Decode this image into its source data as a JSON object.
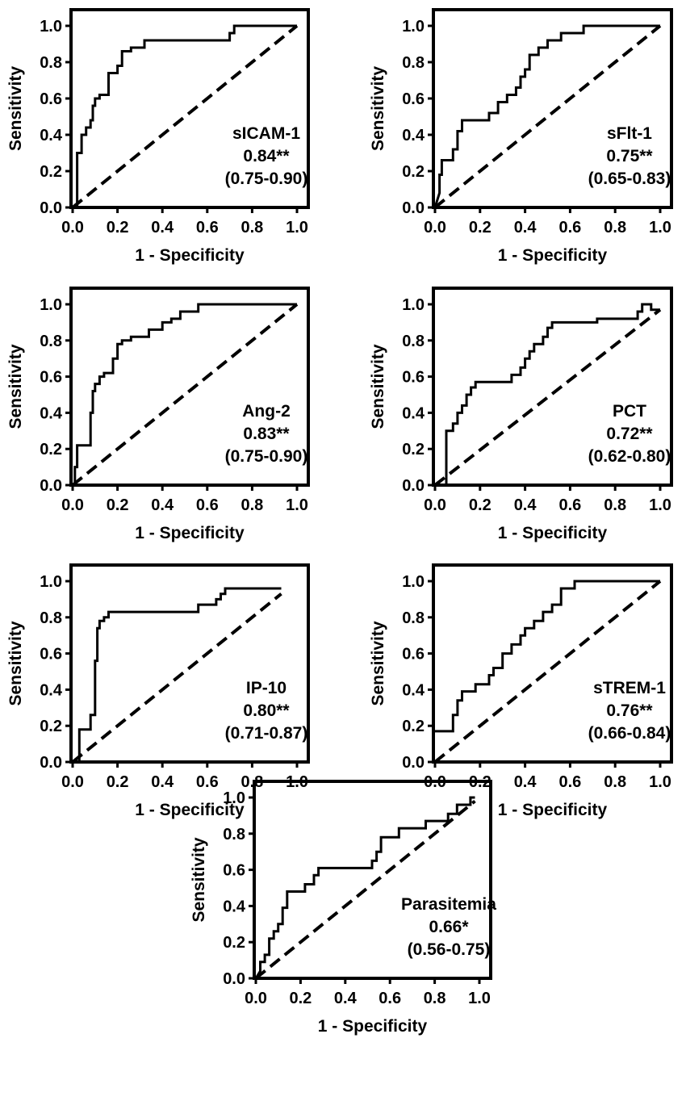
{
  "chart_data": [
    {
      "type": "line",
      "title": "",
      "xlabel": "1 - Specificity",
      "ylabel": "Sensitivity",
      "xlim": [
        0,
        1.0
      ],
      "ylim": [
        0,
        1.0
      ],
      "xticks": [
        "0.0",
        "0.2",
        "0.4",
        "0.6",
        "0.8",
        "1.0"
      ],
      "yticks": [
        "0.0",
        "0.2",
        "0.4",
        "0.6",
        "0.8",
        "1.0"
      ],
      "grid": false,
      "annotation": [
        "sICAM-1",
        "0.84**",
        "(0.75-0.90)"
      ],
      "series": [
        {
          "x": [
            0,
            0.02,
            0.02,
            0.04,
            0.04,
            0.06,
            0.06,
            0.08,
            0.08,
            0.09,
            0.09,
            0.1,
            0.1,
            0.12,
            0.12,
            0.16,
            0.16,
            0.2,
            0.2,
            0.22,
            0.22,
            0.26,
            0.26,
            0.32,
            0.32,
            0.7,
            0.7,
            0.72,
            0.72,
            1.0
          ],
          "y": [
            0,
            0,
            0.3,
            0.3,
            0.4,
            0.4,
            0.44,
            0.44,
            0.48,
            0.48,
            0.56,
            0.56,
            0.6,
            0.6,
            0.62,
            0.62,
            0.74,
            0.74,
            0.78,
            0.78,
            0.86,
            0.86,
            0.88,
            0.88,
            0.92,
            0.92,
            0.96,
            0.96,
            1.0,
            1.0
          ]
        },
        {
          "x": [
            0,
            1.0
          ],
          "y": [
            0,
            1.0
          ]
        }
      ]
    },
    {
      "type": "line",
      "title": "",
      "xlabel": "1 - Specificity",
      "ylabel": "Sensitivity",
      "xlim": [
        0,
        1.0
      ],
      "ylim": [
        0,
        1.0
      ],
      "xticks": [
        "0.0",
        "0.2",
        "0.4",
        "0.6",
        "0.8",
        "1.0"
      ],
      "yticks": [
        "0.0",
        "0.2",
        "0.4",
        "0.6",
        "0.8",
        "1.0"
      ],
      "grid": false,
      "annotation": [
        "sFlt-1",
        "0.75**",
        "(0.65-0.83)"
      ],
      "series": [
        {
          "x": [
            0,
            0.02,
            0.02,
            0.03,
            0.03,
            0.08,
            0.08,
            0.1,
            0.1,
            0.12,
            0.12,
            0.24,
            0.24,
            0.28,
            0.28,
            0.32,
            0.32,
            0.36,
            0.36,
            0.38,
            0.38,
            0.4,
            0.4,
            0.42,
            0.42,
            0.46,
            0.46,
            0.5,
            0.5,
            0.56,
            0.56,
            0.66,
            0.66,
            1.0
          ],
          "y": [
            0,
            0.08,
            0.18,
            0.18,
            0.26,
            0.26,
            0.32,
            0.32,
            0.42,
            0.42,
            0.48,
            0.48,
            0.52,
            0.52,
            0.58,
            0.58,
            0.62,
            0.62,
            0.66,
            0.66,
            0.72,
            0.72,
            0.76,
            0.76,
            0.84,
            0.84,
            0.88,
            0.88,
            0.92,
            0.92,
            0.96,
            0.96,
            1.0,
            1.0
          ]
        },
        {
          "x": [
            0,
            1.0
          ],
          "y": [
            0,
            1.0
          ]
        }
      ]
    },
    {
      "type": "line",
      "title": "",
      "xlabel": "1 - Specificity",
      "ylabel": "Sensitivity",
      "xlim": [
        0,
        1.0
      ],
      "ylim": [
        0,
        1.0
      ],
      "xticks": [
        "0.0",
        "0.2",
        "0.4",
        "0.6",
        "0.8",
        "1.0"
      ],
      "yticks": [
        "0.0",
        "0.2",
        "0.4",
        "0.6",
        "0.8",
        "1.0"
      ],
      "grid": false,
      "annotation": [
        "Ang-2",
        "0.83**",
        "(0.75-0.90)"
      ],
      "series": [
        {
          "x": [
            0,
            0.01,
            0.01,
            0.02,
            0.02,
            0.08,
            0.08,
            0.09,
            0.09,
            0.1,
            0.1,
            0.12,
            0.12,
            0.14,
            0.14,
            0.18,
            0.18,
            0.2,
            0.2,
            0.22,
            0.22,
            0.26,
            0.26,
            0.34,
            0.34,
            0.4,
            0.4,
            0.44,
            0.44,
            0.48,
            0.48,
            0.56,
            0.56,
            1.0
          ],
          "y": [
            0,
            0,
            0.1,
            0.1,
            0.22,
            0.22,
            0.4,
            0.4,
            0.52,
            0.52,
            0.56,
            0.56,
            0.6,
            0.6,
            0.62,
            0.62,
            0.7,
            0.7,
            0.78,
            0.78,
            0.8,
            0.8,
            0.82,
            0.82,
            0.86,
            0.86,
            0.9,
            0.9,
            0.92,
            0.92,
            0.96,
            0.96,
            1.0,
            1.0
          ]
        },
        {
          "x": [
            0,
            1.0
          ],
          "y": [
            0,
            1.0
          ]
        }
      ]
    },
    {
      "type": "line",
      "title": "",
      "xlabel": "1 - Specificity",
      "ylabel": "Sensitivity",
      "xlim": [
        0,
        1.0
      ],
      "ylim": [
        0,
        1.0
      ],
      "xticks": [
        "0.0",
        "0.2",
        "0.4",
        "0.6",
        "0.8",
        "1.0"
      ],
      "yticks": [
        "0.0",
        "0.2",
        "0.4",
        "0.6",
        "0.8",
        "1.0"
      ],
      "grid": false,
      "annotation": [
        "PCT",
        "0.72**",
        "(0.62-0.80)"
      ],
      "series": [
        {
          "x": [
            0,
            0.05,
            0.05,
            0.08,
            0.08,
            0.1,
            0.1,
            0.12,
            0.12,
            0.14,
            0.14,
            0.16,
            0.16,
            0.18,
            0.18,
            0.34,
            0.34,
            0.38,
            0.38,
            0.4,
            0.4,
            0.42,
            0.42,
            0.44,
            0.44,
            0.48,
            0.48,
            0.5,
            0.5,
            0.52,
            0.52,
            0.72,
            0.72,
            0.9,
            0.9,
            0.92,
            0.92,
            0.96,
            0.96,
            1.0
          ],
          "y": [
            0,
            0,
            0.3,
            0.3,
            0.34,
            0.34,
            0.4,
            0.4,
            0.44,
            0.44,
            0.5,
            0.5,
            0.54,
            0.54,
            0.57,
            0.57,
            0.61,
            0.61,
            0.65,
            0.65,
            0.7,
            0.7,
            0.74,
            0.74,
            0.78,
            0.78,
            0.82,
            0.82,
            0.87,
            0.87,
            0.9,
            0.9,
            0.92,
            0.92,
            0.96,
            0.96,
            1.0,
            1.0,
            0.97,
            0.97
          ]
        },
        {
          "x": [
            0,
            1.0
          ],
          "y": [
            0,
            0.97
          ]
        }
      ]
    },
    {
      "type": "line",
      "title": "",
      "xlabel": "1 - Specificity",
      "ylabel": "Sensitivity",
      "xlim": [
        0,
        1.0
      ],
      "ylim": [
        0,
        1.0
      ],
      "xticks": [
        "0.0",
        "0.2",
        "0.4",
        "0.6",
        "0.8",
        "1.0"
      ],
      "yticks": [
        "0.0",
        "0.2",
        "0.4",
        "0.6",
        "0.8",
        "1.0"
      ],
      "grid": false,
      "annotation": [
        "IP-10",
        "0.80**",
        "(0.71-0.87)"
      ],
      "series": [
        {
          "x": [
            0,
            0.03,
            0.03,
            0.08,
            0.08,
            0.1,
            0.1,
            0.11,
            0.11,
            0.12,
            0.12,
            0.14,
            0.14,
            0.16,
            0.16,
            0.56,
            0.56,
            0.64,
            0.64,
            0.66,
            0.66,
            0.68,
            0.68,
            0.93
          ],
          "y": [
            0,
            0,
            0.18,
            0.18,
            0.26,
            0.26,
            0.56,
            0.56,
            0.74,
            0.74,
            0.78,
            0.78,
            0.8,
            0.8,
            0.83,
            0.83,
            0.87,
            0.87,
            0.9,
            0.9,
            0.93,
            0.93,
            0.96,
            0.96
          ]
        },
        {
          "x": [
            0,
            0.93
          ],
          "y": [
            0,
            0.93
          ]
        }
      ]
    },
    {
      "type": "line",
      "title": "",
      "xlabel": "1 - Specificity",
      "ylabel": "Sensitivity",
      "xlim": [
        0,
        1.0
      ],
      "ylim": [
        0,
        1.0
      ],
      "xticks": [
        "0.0",
        "0.2",
        "0.4",
        "0.6",
        "0.8",
        "1.0"
      ],
      "yticks": [
        "0.0",
        "0.2",
        "0.4",
        "0.6",
        "0.8",
        "1.0"
      ],
      "grid": false,
      "annotation": [
        "sTREM-1",
        "0.76**",
        "(0.66-0.84)"
      ],
      "series": [
        {
          "x": [
            0,
            0.08,
            0.08,
            0.1,
            0.1,
            0.12,
            0.12,
            0.18,
            0.18,
            0.24,
            0.24,
            0.26,
            0.26,
            0.3,
            0.3,
            0.34,
            0.34,
            0.38,
            0.38,
            0.4,
            0.4,
            0.44,
            0.44,
            0.48,
            0.48,
            0.52,
            0.52,
            0.56,
            0.56,
            0.62,
            0.62,
            1.0
          ],
          "y": [
            0.17,
            0.17,
            0.26,
            0.26,
            0.34,
            0.34,
            0.39,
            0.39,
            0.43,
            0.43,
            0.48,
            0.48,
            0.52,
            0.52,
            0.6,
            0.6,
            0.65,
            0.65,
            0.7,
            0.7,
            0.74,
            0.74,
            0.78,
            0.78,
            0.83,
            0.83,
            0.87,
            0.87,
            0.96,
            0.96,
            1.0,
            1.0
          ]
        },
        {
          "x": [
            0,
            1.0
          ],
          "y": [
            0,
            1.0
          ]
        }
      ]
    },
    {
      "type": "line",
      "title": "",
      "xlabel": "1 - Specificity",
      "ylabel": "Sensitivity",
      "xlim": [
        0,
        1.0
      ],
      "ylim": [
        0,
        1.0
      ],
      "xticks": [
        "0.0",
        "0.2",
        "0.4",
        "0.6",
        "0.8",
        "1.0"
      ],
      "yticks": [
        "0.0",
        "0.2",
        "0.4",
        "0.6",
        "0.8",
        "1.0"
      ],
      "grid": false,
      "annotation": [
        "Parasitemia",
        "0.66*",
        "(0.56-0.75)"
      ],
      "series": [
        {
          "x": [
            0,
            0.02,
            0.02,
            0.04,
            0.04,
            0.06,
            0.06,
            0.08,
            0.08,
            0.1,
            0.1,
            0.12,
            0.12,
            0.14,
            0.14,
            0.22,
            0.22,
            0.26,
            0.26,
            0.28,
            0.28,
            0.3,
            0.3,
            0.52,
            0.52,
            0.54,
            0.54,
            0.56,
            0.56,
            0.64,
            0.64,
            0.76,
            0.76,
            0.86,
            0.86,
            0.9,
            0.9,
            0.96,
            0.96,
            0.98
          ],
          "y": [
            0,
            0.04,
            0.09,
            0.09,
            0.13,
            0.13,
            0.22,
            0.22,
            0.26,
            0.26,
            0.3,
            0.3,
            0.39,
            0.39,
            0.48,
            0.48,
            0.52,
            0.52,
            0.57,
            0.57,
            0.61,
            0.61,
            0.61,
            0.61,
            0.65,
            0.65,
            0.7,
            0.7,
            0.78,
            0.78,
            0.83,
            0.83,
            0.87,
            0.87,
            0.91,
            0.91,
            0.96,
            0.96,
            1.0,
            1.0
          ]
        },
        {
          "x": [
            0,
            0.98
          ],
          "y": [
            0,
            0.98
          ]
        }
      ]
    }
  ]
}
